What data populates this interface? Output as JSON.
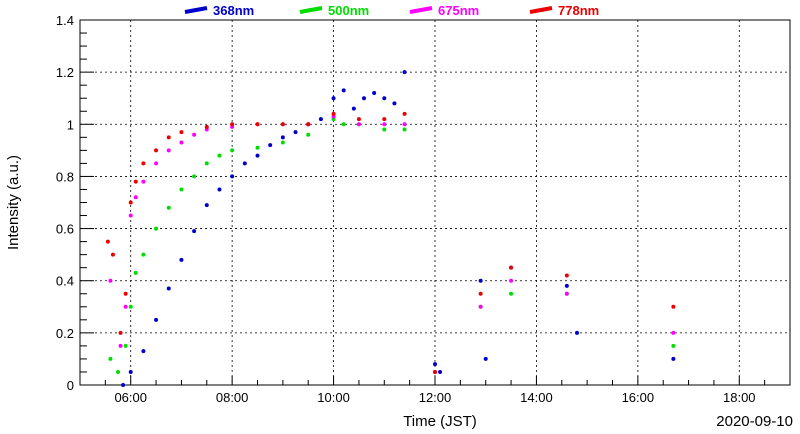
{
  "chart_data": {
    "type": "scatter",
    "title": "",
    "xlabel": "Time (JST)",
    "ylabel": "Intensity (a.u.)",
    "date_label": "2020-09-10",
    "xlim_hours": [
      5.0,
      19.0
    ],
    "ylim": [
      0,
      1.4
    ],
    "grid": true,
    "legend_position": "top",
    "x_ticks": [
      "06:00",
      "08:00",
      "10:00",
      "12:00",
      "14:00",
      "16:00",
      "18:00"
    ],
    "y_ticks": [
      "0",
      "0.2",
      "0.4",
      "0.6",
      "0.8",
      "1",
      "1.2",
      "1.4"
    ],
    "series": [
      {
        "name": "368nm",
        "color": "#0000cc",
        "points": [
          [
            5.85,
            0.0
          ],
          [
            6.0,
            0.05
          ],
          [
            6.25,
            0.13
          ],
          [
            6.5,
            0.25
          ],
          [
            6.75,
            0.37
          ],
          [
            7.0,
            0.48
          ],
          [
            7.25,
            0.59
          ],
          [
            7.5,
            0.69
          ],
          [
            7.75,
            0.75
          ],
          [
            8.0,
            0.8
          ],
          [
            8.25,
            0.85
          ],
          [
            8.5,
            0.88
          ],
          [
            8.75,
            0.92
          ],
          [
            9.0,
            0.95
          ],
          [
            9.25,
            0.97
          ],
          [
            9.5,
            1.0
          ],
          [
            9.75,
            1.02
          ],
          [
            10.0,
            1.1
          ],
          [
            10.2,
            1.13
          ],
          [
            10.4,
            1.06
          ],
          [
            10.6,
            1.1
          ],
          [
            10.8,
            1.12
          ],
          [
            11.0,
            1.1
          ],
          [
            11.2,
            1.08
          ],
          [
            11.4,
            1.2
          ],
          [
            12.0,
            0.08
          ],
          [
            12.1,
            0.05
          ],
          [
            12.9,
            0.4
          ],
          [
            13.0,
            0.1
          ],
          [
            13.5,
            0.45
          ],
          [
            14.6,
            0.38
          ],
          [
            14.8,
            0.2
          ],
          [
            16.7,
            0.1
          ]
        ]
      },
      {
        "name": "500nm",
        "color": "#00dd00",
        "points": [
          [
            5.6,
            0.1
          ],
          [
            5.75,
            0.05
          ],
          [
            5.9,
            0.15
          ],
          [
            6.0,
            0.3
          ],
          [
            6.1,
            0.43
          ],
          [
            6.25,
            0.5
          ],
          [
            6.5,
            0.6
          ],
          [
            6.75,
            0.68
          ],
          [
            7.0,
            0.75
          ],
          [
            7.25,
            0.8
          ],
          [
            7.5,
            0.85
          ],
          [
            7.75,
            0.88
          ],
          [
            8.0,
            0.9
          ],
          [
            8.5,
            0.91
          ],
          [
            9.0,
            0.93
          ],
          [
            9.5,
            0.96
          ],
          [
            10.0,
            1.02
          ],
          [
            10.2,
            1.0
          ],
          [
            10.5,
            1.0
          ],
          [
            11.0,
            0.98
          ],
          [
            11.4,
            0.98
          ],
          [
            12.0,
            0.05
          ],
          [
            12.9,
            0.3
          ],
          [
            13.5,
            0.35
          ],
          [
            14.6,
            0.35
          ],
          [
            16.7,
            0.15
          ]
        ]
      },
      {
        "name": "675nm",
        "color": "#ff00ff",
        "points": [
          [
            5.6,
            0.4
          ],
          [
            5.8,
            0.15
          ],
          [
            5.9,
            0.3
          ],
          [
            6.0,
            0.65
          ],
          [
            6.1,
            0.72
          ],
          [
            6.25,
            0.78
          ],
          [
            6.5,
            0.85
          ],
          [
            6.75,
            0.9
          ],
          [
            7.0,
            0.93
          ],
          [
            7.25,
            0.96
          ],
          [
            7.5,
            0.98
          ],
          [
            8.0,
            0.99
          ],
          [
            8.5,
            1.0
          ],
          [
            9.0,
            1.0
          ],
          [
            9.5,
            1.0
          ],
          [
            10.0,
            1.03
          ],
          [
            10.5,
            1.0
          ],
          [
            11.0,
            1.0
          ],
          [
            11.4,
            1.0
          ],
          [
            12.0,
            0.05
          ],
          [
            12.9,
            0.3
          ],
          [
            13.5,
            0.4
          ],
          [
            14.6,
            0.35
          ],
          [
            16.7,
            0.2
          ]
        ]
      },
      {
        "name": "778nm",
        "color": "#ee0000",
        "points": [
          [
            5.55,
            0.55
          ],
          [
            5.65,
            0.5
          ],
          [
            5.8,
            0.2
          ],
          [
            5.9,
            0.35
          ],
          [
            6.0,
            0.7
          ],
          [
            6.1,
            0.78
          ],
          [
            6.25,
            0.85
          ],
          [
            6.5,
            0.9
          ],
          [
            6.75,
            0.95
          ],
          [
            7.0,
            0.97
          ],
          [
            7.5,
            0.99
          ],
          [
            8.0,
            1.0
          ],
          [
            8.5,
            1.0
          ],
          [
            9.0,
            1.0
          ],
          [
            9.5,
            1.0
          ],
          [
            10.0,
            1.04
          ],
          [
            10.5,
            1.02
          ],
          [
            11.0,
            1.02
          ],
          [
            11.4,
            1.04
          ],
          [
            12.0,
            0.05
          ],
          [
            12.9,
            0.35
          ],
          [
            13.5,
            0.45
          ],
          [
            14.6,
            0.42
          ],
          [
            16.7,
            0.3
          ]
        ]
      }
    ]
  }
}
